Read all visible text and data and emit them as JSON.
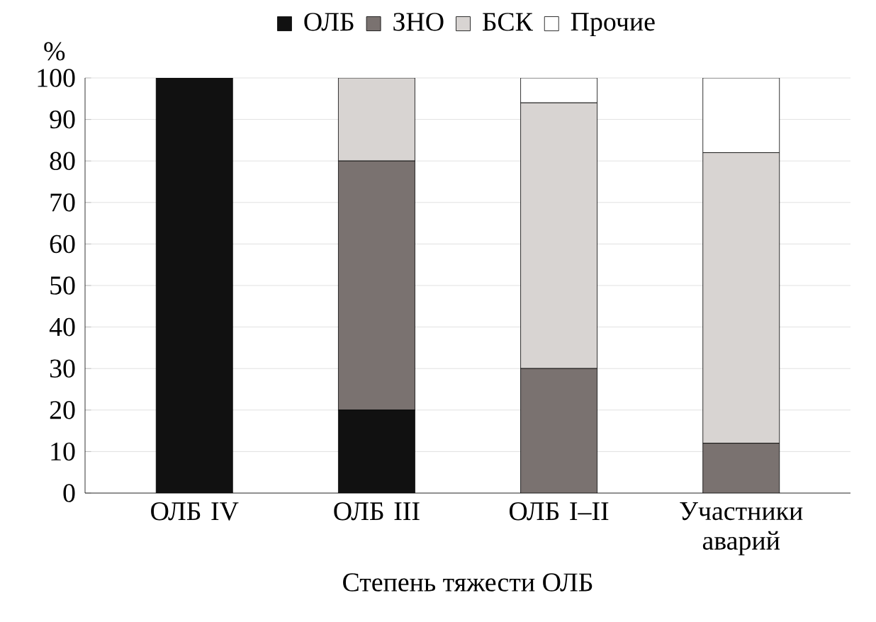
{
  "chart_data": {
    "type": "bar",
    "stacked": true,
    "xlabel": "Степень тяжести ОЛБ",
    "ylabel": "%",
    "categories": [
      "ОЛБ IV",
      "ОЛБ III",
      "ОЛБ I–II",
      "Участники аварий"
    ],
    "series": [
      {
        "name": "ОЛБ",
        "color": "#111111",
        "values": [
          100,
          20,
          0,
          0
        ]
      },
      {
        "name": "ЗНО",
        "color": "#7a7270",
        "values": [
          0,
          60,
          30,
          12
        ]
      },
      {
        "name": "БСК",
        "color": "#d8d4d2",
        "values": [
          0,
          20,
          64,
          70
        ]
      },
      {
        "name": "Прочие",
        "color": "#ffffff",
        "values": [
          0,
          0,
          6,
          18
        ]
      }
    ],
    "ylim": [
      0,
      100
    ],
    "yticks": [
      0,
      10,
      20,
      30,
      40,
      50,
      60,
      70,
      80,
      90,
      100
    ],
    "grid": "y",
    "legend": "top"
  }
}
